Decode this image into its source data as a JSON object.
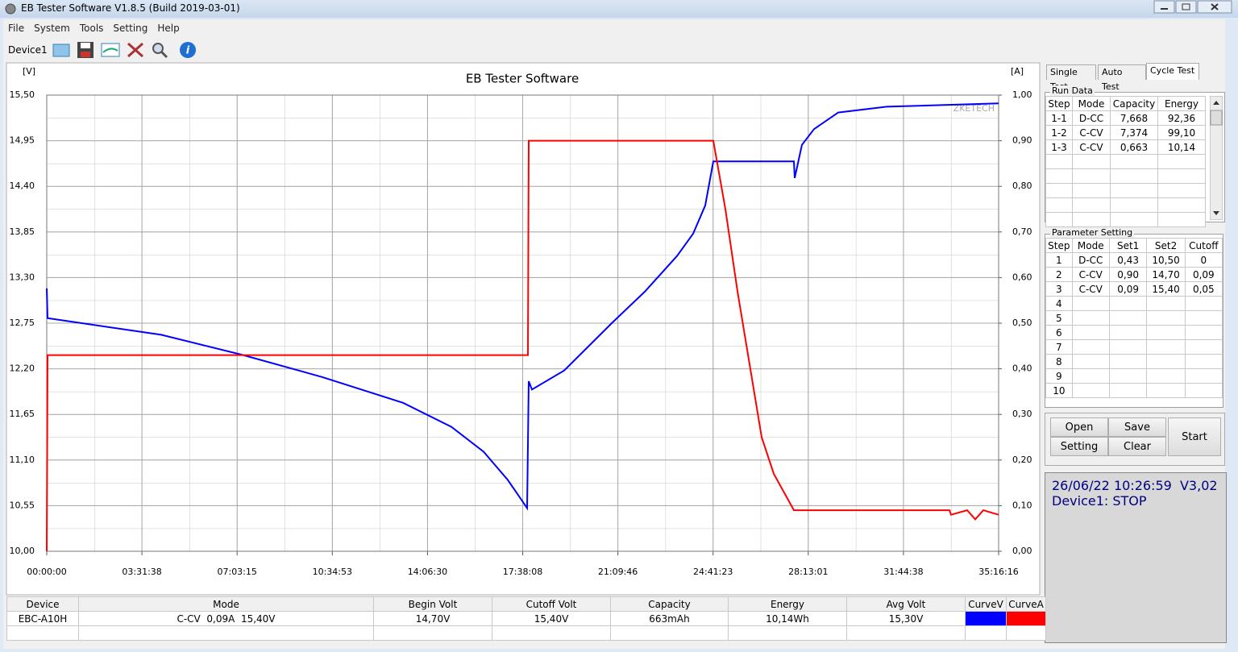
{
  "window": {
    "title": "EB Tester Software V1.8.5 (Build 2019-03-01)"
  },
  "menu": [
    "File",
    "System",
    "Tools",
    "Setting",
    "Help"
  ],
  "toolbar": {
    "device": "Device1"
  },
  "chart_data": {
    "type": "line",
    "title": "EB Tester Software",
    "y_unit": "[V]",
    "y2_unit": "[A]",
    "watermark": "ZKETECH",
    "xlim": [
      0,
      126976
    ],
    "xticks": [
      {
        "value": 0,
        "label": "00:00:00"
      },
      {
        "value": 12698,
        "label": "03:31:38"
      },
      {
        "value": 25395,
        "label": "07:03:15"
      },
      {
        "value": 38093,
        "label": "10:34:53"
      },
      {
        "value": 50790,
        "label": "14:06:30"
      },
      {
        "value": 63488,
        "label": "17:38:08"
      },
      {
        "value": 76186,
        "label": "21:09:46"
      },
      {
        "value": 88883,
        "label": "24:41:23"
      },
      {
        "value": 101581,
        "label": "28:13:01"
      },
      {
        "value": 114278,
        "label": "31:44:38"
      },
      {
        "value": 126976,
        "label": "35:16:16"
      }
    ],
    "ylim": [
      10,
      15.5
    ],
    "yticks": [
      {
        "value": 10,
        "label": "10,00"
      },
      {
        "value": 10.55,
        "label": "10,55"
      },
      {
        "value": 11.1,
        "label": "11,10"
      },
      {
        "value": 11.65,
        "label": "11,65"
      },
      {
        "value": 12.2,
        "label": "12,20"
      },
      {
        "value": 12.75,
        "label": "12,75"
      },
      {
        "value": 13.3,
        "label": "13,30"
      },
      {
        "value": 13.85,
        "label": "13,85"
      },
      {
        "value": 14.4,
        "label": "14,40"
      },
      {
        "value": 14.95,
        "label": "14,95"
      },
      {
        "value": 15.5,
        "label": "15,50"
      }
    ],
    "y2lim": [
      0,
      1
    ],
    "y2ticks": [
      {
        "value": 0,
        "label": "0,00"
      },
      {
        "value": 0.1,
        "label": "0,10"
      },
      {
        "value": 0.2,
        "label": "0,20"
      },
      {
        "value": 0.3,
        "label": "0,30"
      },
      {
        "value": 0.4,
        "label": "0,40"
      },
      {
        "value": 0.5,
        "label": "0,50"
      },
      {
        "value": 0.6,
        "label": "0,60"
      },
      {
        "value": 0.7,
        "label": "0,70"
      },
      {
        "value": 0.8,
        "label": "0,80"
      },
      {
        "value": 0.9,
        "label": "0,90"
      },
      {
        "value": 1,
        "label": "1,00"
      }
    ],
    "grid": true,
    "series": [
      {
        "name": "CurveV",
        "color": "#0000ff",
        "x": [
          0,
          108,
          15268,
          26020,
          36772,
          47524,
          53975,
          58276,
          61501,
          64082,
          64297,
          64727,
          69028,
          75479,
          79780,
          84081,
          86231,
          87844,
          88919,
          99671,
          99779,
          100746,
          102359,
          105585,
          112036,
          126976
        ],
        "values": [
          13.17,
          12.81,
          12.61,
          12.37,
          12.1,
          11.79,
          11.5,
          11.2,
          10.86,
          10.52,
          12.05,
          11.95,
          12.18,
          12.76,
          13.13,
          13.56,
          13.83,
          14.17,
          14.7,
          14.7,
          14.5,
          14.9,
          15.09,
          15.29,
          15.36,
          15.4
        ]
      },
      {
        "name": "CurveA",
        "color": "#ff0000",
        "axis": "y2",
        "x": [
          0,
          108,
          64190,
          64297,
          88919,
          90532,
          92145,
          93758,
          95371,
          96984,
          99671,
          120422,
          120637,
          122788,
          123863,
          124938,
          126976
        ],
        "values": [
          0,
          0.43,
          0.43,
          0.9,
          0.9,
          0.75,
          0.57,
          0.41,
          0.25,
          0.17,
          0.09,
          0.09,
          0.08,
          0.09,
          0.07,
          0.09,
          0.08
        ]
      }
    ]
  },
  "tabs": [
    "Single Test",
    "Auto Test",
    "Cycle Test"
  ],
  "run_data": {
    "title": "Run Data",
    "headers": [
      "Step",
      "Mode",
      "Capacity",
      "Energy"
    ],
    "rows": [
      [
        "1-1",
        "D-CC",
        "7,668",
        "92,36"
      ],
      [
        "1-2",
        "C-CV",
        "7,374",
        "99,10"
      ],
      [
        "1-3",
        "C-CV",
        "0,663",
        "10,14"
      ]
    ]
  },
  "parameter_setting": {
    "title": "Parameter Setting",
    "headers": [
      "Step",
      "Mode",
      "Set1",
      "Set2",
      "Cutoff"
    ],
    "rows": [
      [
        "1",
        "D-CC",
        "0,43",
        "10,50",
        "0"
      ],
      [
        "2",
        "C-CV",
        "0,90",
        "14,70",
        "0,09"
      ],
      [
        "3",
        "C-CV",
        "0,09",
        "15,40",
        "0,05"
      ],
      [
        "4"
      ],
      [
        "5"
      ],
      [
        "6"
      ],
      [
        "7"
      ],
      [
        "8"
      ],
      [
        "9"
      ],
      [
        "10"
      ]
    ]
  },
  "buttons": {
    "open": "Open",
    "save": "Save",
    "setting": "Setting",
    "clear": "Clear",
    "start": "Start"
  },
  "status": {
    "line1": "26/06/22 10:26:59  V3,02",
    "line2": "Device1: STOP"
  },
  "status_table": {
    "headers": [
      "Device",
      "Mode",
      "Begin Volt",
      "Cutoff Volt",
      "Capacity",
      "Energy",
      "Avg Volt"
    ],
    "row": [
      "EBC-A10H",
      "C-CV  0,09A  15,40V",
      "14,70V",
      "15,40V",
      "663mAh",
      "10,14Wh",
      "15,30V"
    ]
  }
}
